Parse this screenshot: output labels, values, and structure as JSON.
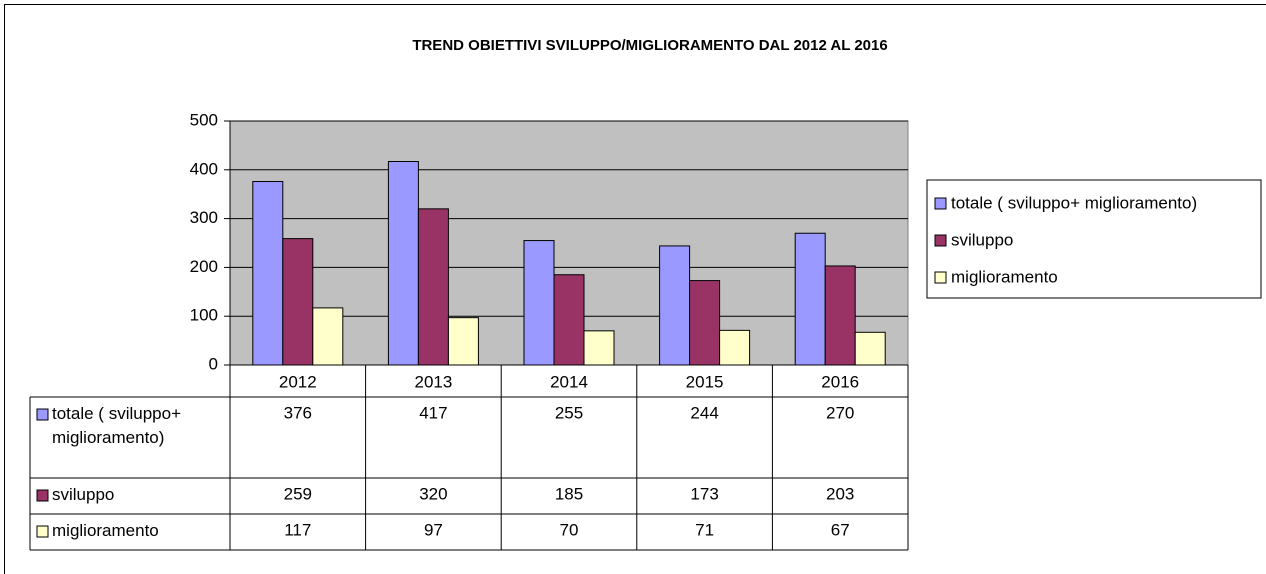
{
  "chart_data": {
    "type": "bar",
    "title": "TREND OBIETTIVI SVILUPPO/MIGLIORAMENTO DAL 2012 AL 2016",
    "categories": [
      "2012",
      "2013",
      "2014",
      "2015",
      "2016"
    ],
    "series": [
      {
        "name": "totale ( sviluppo+ miglioramento)",
        "color": "#9999ff",
        "values": [
          376,
          417,
          255,
          244,
          270
        ]
      },
      {
        "name": "sviluppo",
        "color": "#993366",
        "values": [
          259,
          320,
          185,
          173,
          203
        ]
      },
      {
        "name": "miglioramento",
        "color": "#ffffcc",
        "values": [
          117,
          97,
          70,
          71,
          67
        ]
      }
    ],
    "ylim": [
      0,
      500
    ],
    "yticks": [
      0,
      100,
      200,
      300,
      400,
      500
    ],
    "grid": true,
    "legend": "right"
  }
}
